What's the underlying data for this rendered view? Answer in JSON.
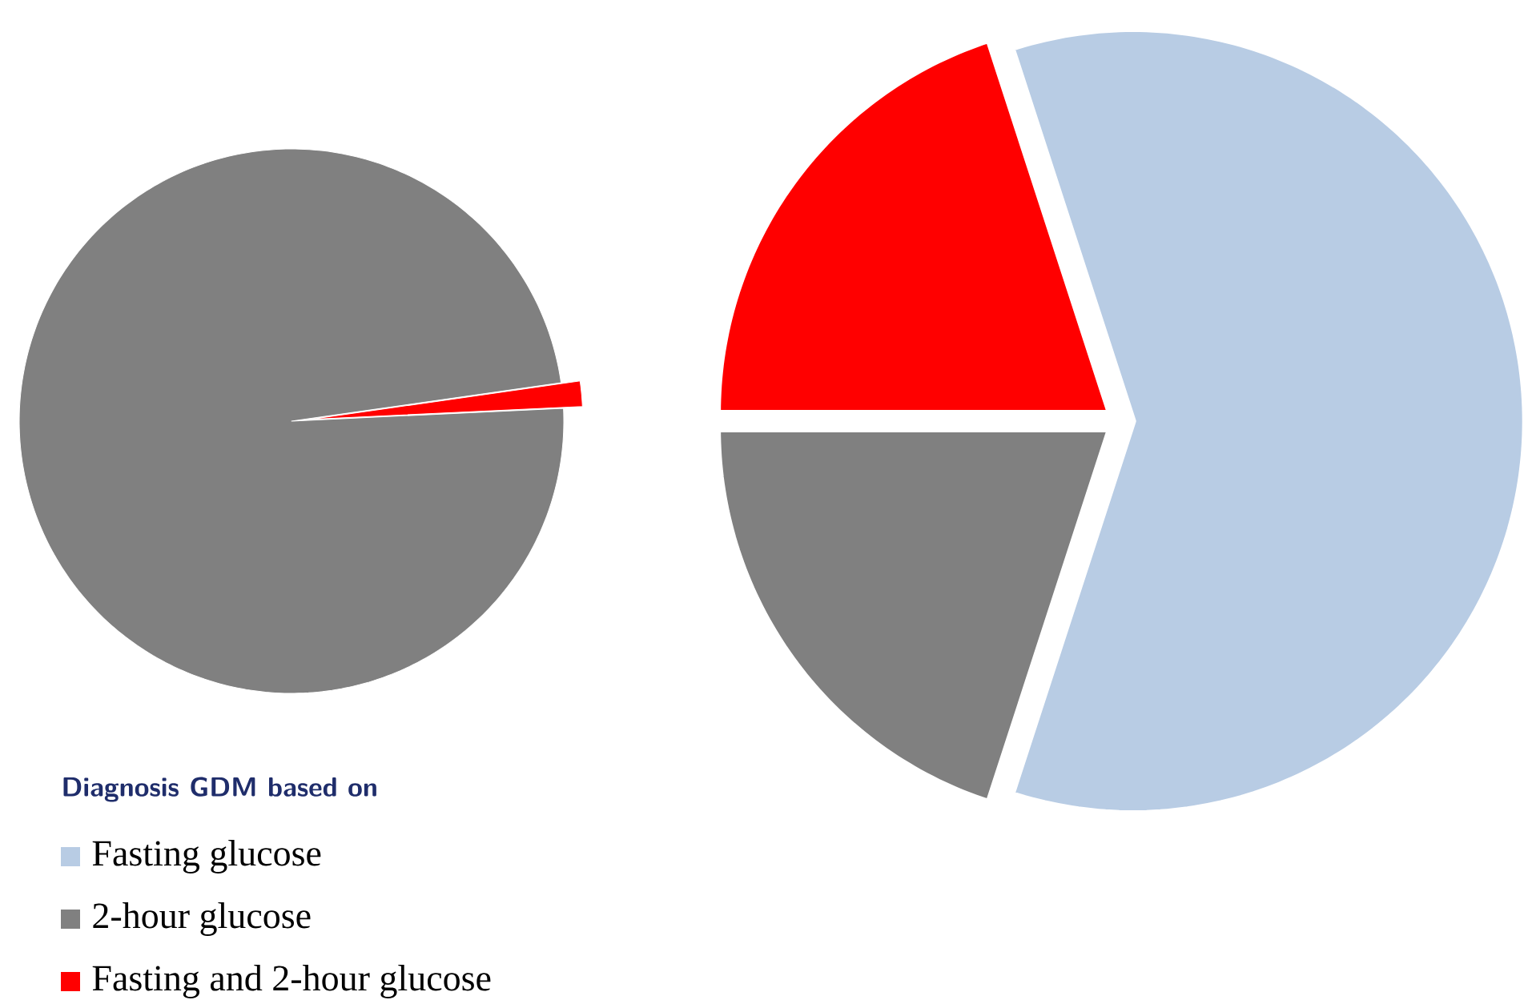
{
  "chart_data": [
    {
      "type": "pie",
      "categories": [
        "Fasting glucose",
        "2-hour glucose",
        "Fasting and 2-hour glucose"
      ],
      "values": [
        0,
        98.5,
        1.5
      ],
      "colors": [
        "#b8cce4",
        "#808080",
        "#ff0000"
      ],
      "legend": "bottom left",
      "legend_title": "Diagnosis GDM based on"
    },
    {
      "type": "pie",
      "categories": [
        null,
        null,
        null
      ],
      "values": [
        60,
        20,
        20
      ],
      "colors": [
        "#b8cce4",
        "#808080",
        "#ff0000"
      ]
    }
  ]
}
